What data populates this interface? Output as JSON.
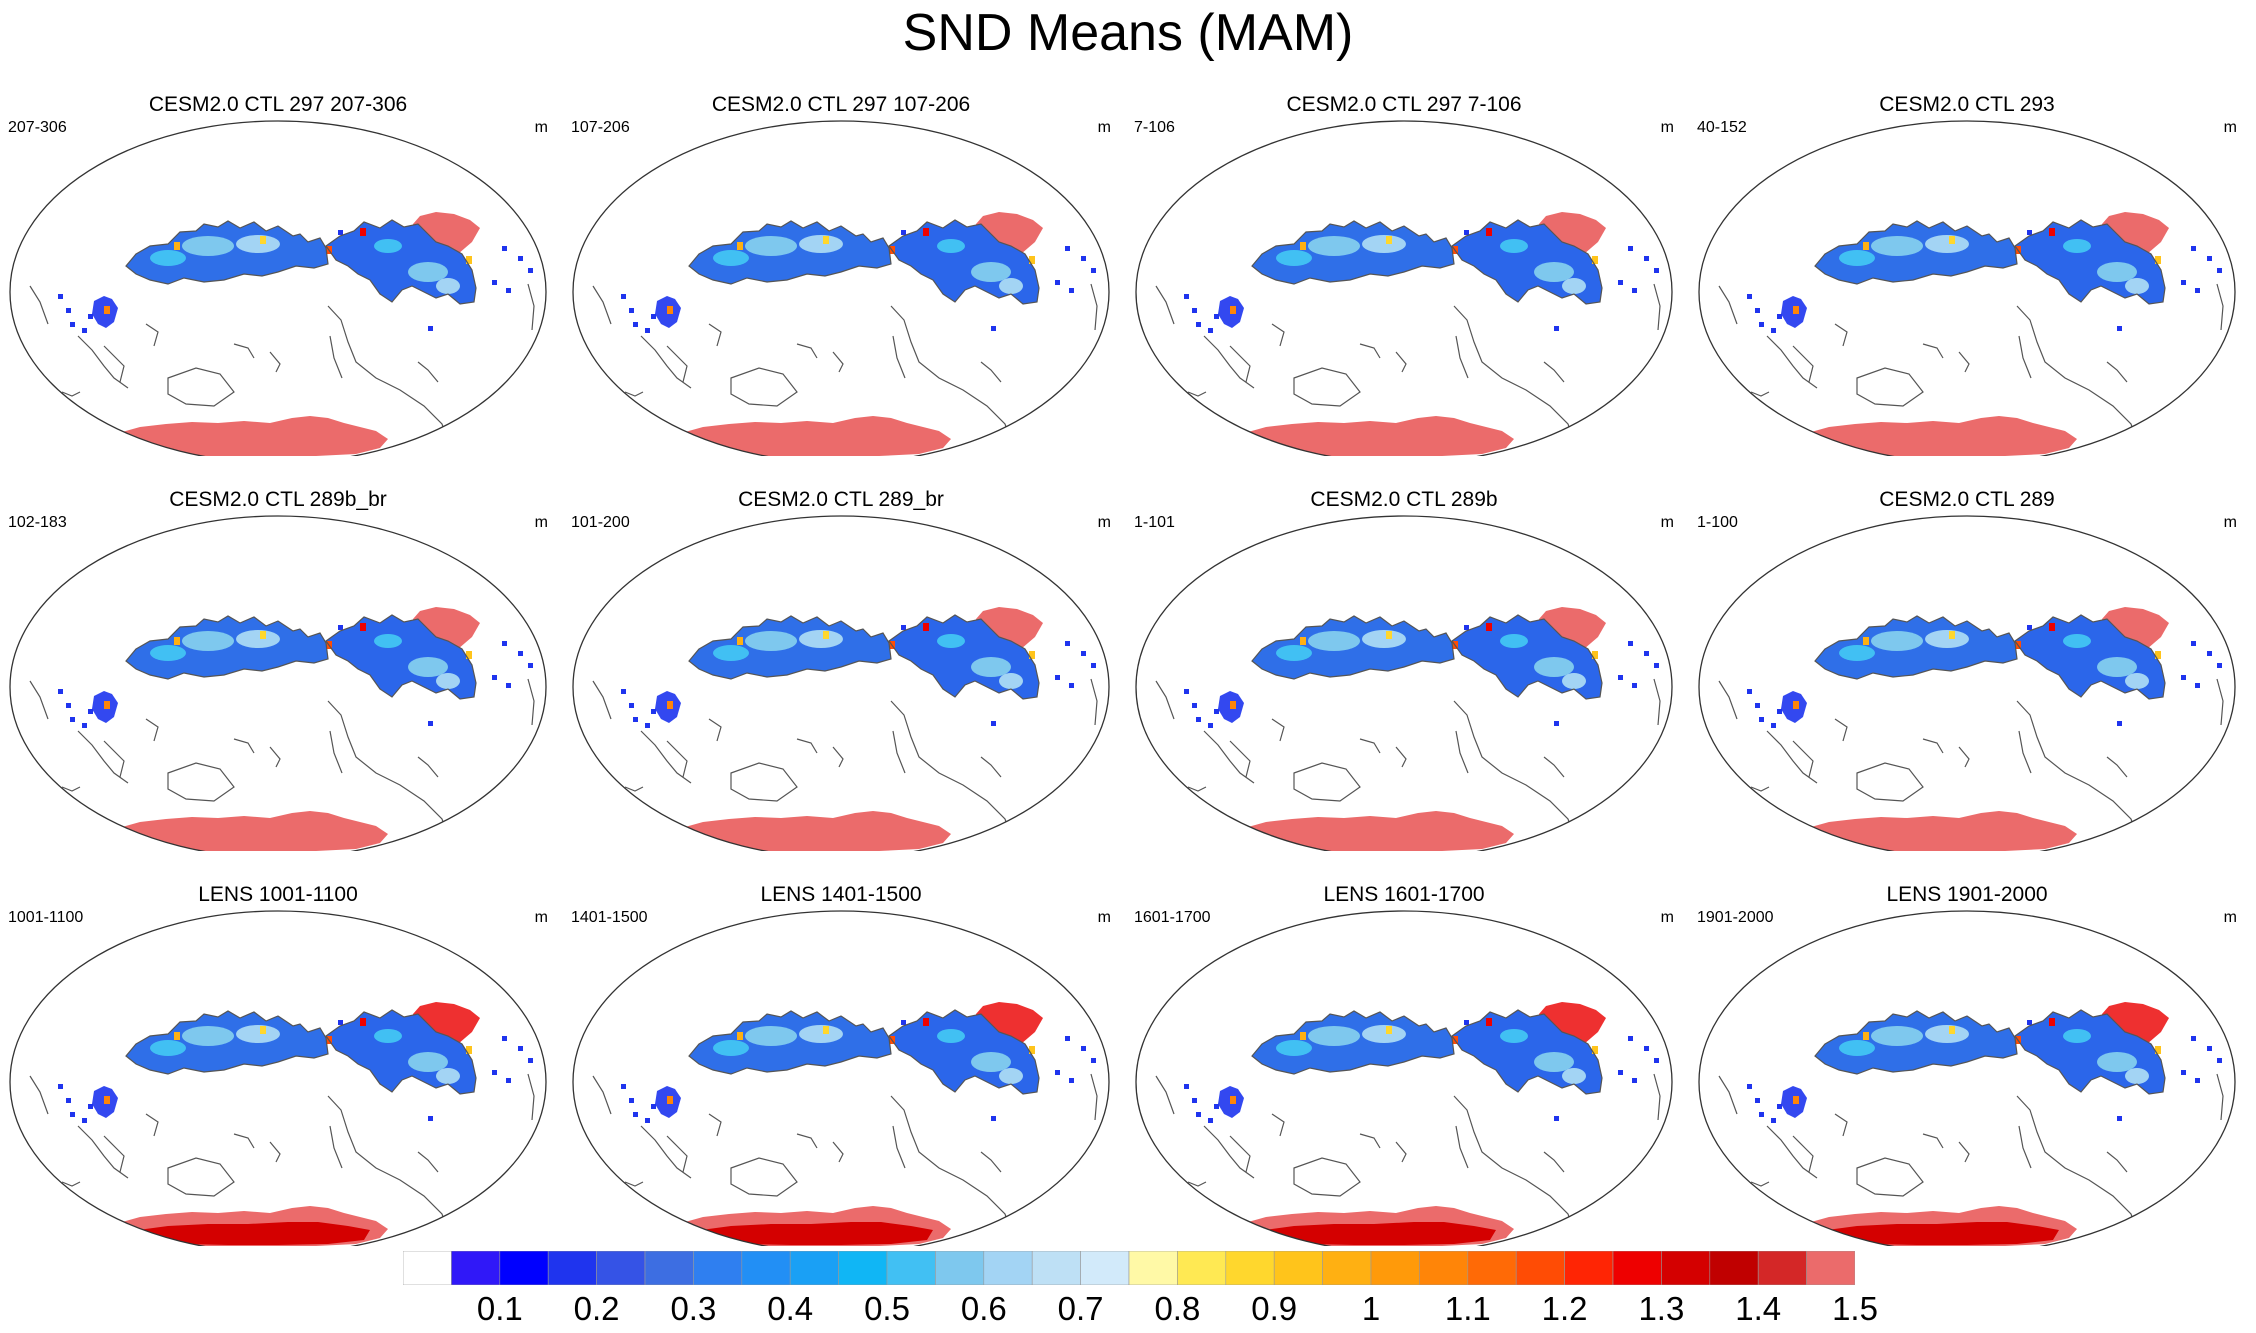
{
  "title": "SND Means (MAM)",
  "units": "m",
  "panels": [
    {
      "title": "CESM2.0 CTL 297 207-306",
      "years": "207-306",
      "units": "m",
      "variant": "ctl"
    },
    {
      "title": "CESM2.0 CTL 297 107-206",
      "years": "107-206",
      "units": "m",
      "variant": "ctl"
    },
    {
      "title": "CESM2.0 CTL 297 7-106",
      "years": "7-106",
      "units": "m",
      "variant": "ctl"
    },
    {
      "title": "CESM2.0 CTL 293",
      "years": "40-152",
      "units": "m",
      "variant": "ctl"
    },
    {
      "title": "CESM2.0 CTL 289b_br",
      "years": "102-183",
      "units": "m",
      "variant": "ctl"
    },
    {
      "title": "CESM2.0 CTL 289_br",
      "years": "101-200",
      "units": "m",
      "variant": "ctl"
    },
    {
      "title": "CESM2.0 CTL 289b",
      "years": "1-101",
      "units": "m",
      "variant": "ctl"
    },
    {
      "title": "CESM2.0 CTL 289",
      "years": "1-100",
      "units": "m",
      "variant": "ctl"
    },
    {
      "title": "LENS 1001-1100",
      "years": "1001-1100",
      "units": "m",
      "variant": "lens"
    },
    {
      "title": "LENS 1401-1500",
      "years": "1401-1500",
      "units": "m",
      "variant": "lens"
    },
    {
      "title": "LENS 1601-1700",
      "years": "1601-1700",
      "units": "m",
      "variant": "lens"
    },
    {
      "title": "LENS 1901-2000",
      "years": "1901-2000",
      "units": "m",
      "variant": "lens"
    }
  ],
  "colorbar": {
    "labels": [
      "0.1",
      "0.2",
      "0.3",
      "0.4",
      "0.5",
      "0.6",
      "0.7",
      "0.8",
      "0.9",
      "1",
      "1.1",
      "1.2",
      "1.3",
      "1.4",
      "1.5"
    ],
    "colors": [
      "#ffffff",
      "#3018f8",
      "#0000ff",
      "#1f34ee",
      "#3553e6",
      "#3d6ee2",
      "#2f7ff0",
      "#228ff5",
      "#1aa0f5",
      "#10b6f5",
      "#41c0f3",
      "#7ec8ee",
      "#a3d4f4",
      "#bee0f5",
      "#d2eafa",
      "#fff9a6",
      "#ffe953",
      "#ffd72d",
      "#ffc41b",
      "#ffb012",
      "#ff9a0a",
      "#ff8508",
      "#ff6a06",
      "#ff4c05",
      "#ff2504",
      "#ee0000",
      "#d40000",
      "#c00000",
      "#d42727",
      "#eb6b6b"
    ]
  }
}
